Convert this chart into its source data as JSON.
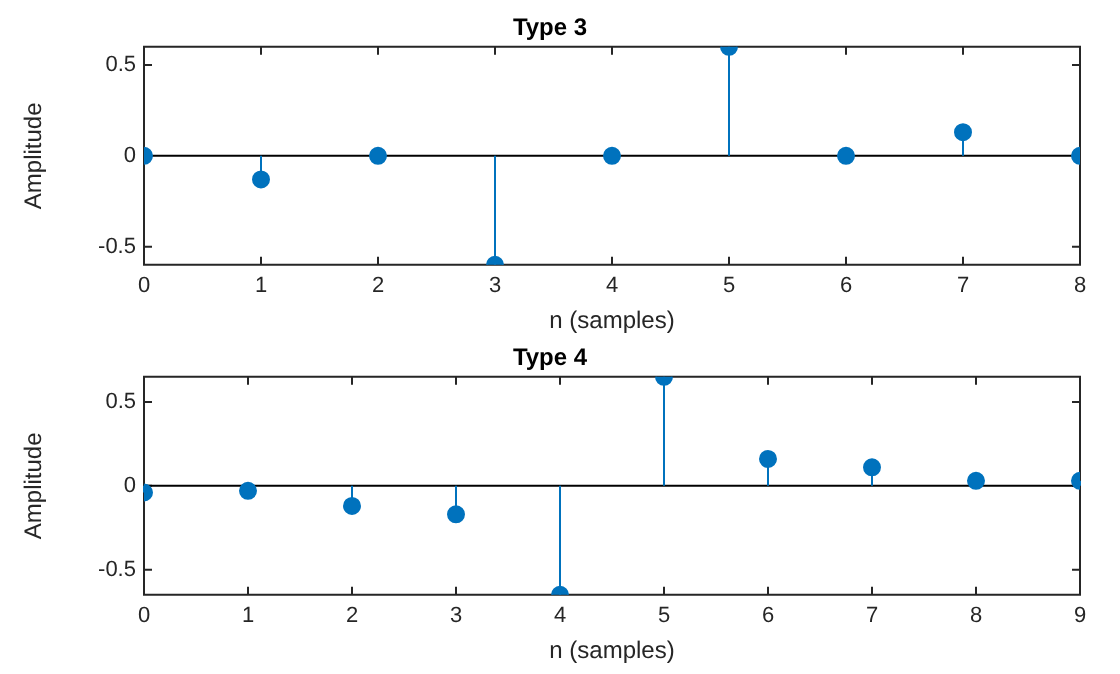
{
  "chart_data": [
    {
      "type": "lollipop",
      "title": "Type 3",
      "xlabel": "n (samples)",
      "ylabel": "Amplitude",
      "x": [
        0,
        1,
        2,
        3,
        4,
        5,
        6,
        7,
        8
      ],
      "series": [
        {
          "color": "#0072bd",
          "values": [
            0,
            -0.13,
            0,
            -0.6,
            0,
            0.6,
            0,
            0.13,
            0
          ]
        }
      ],
      "ref_lines": [
        {
          "axis": "y",
          "value": 0,
          "color": "#000000"
        }
      ],
      "xlim": [
        0,
        8
      ],
      "xticks": [
        0,
        1,
        2,
        3,
        4,
        5,
        6,
        7,
        8
      ],
      "ylim": [
        -0.6,
        0.6
      ],
      "yticks": [
        -0.5,
        0,
        0.5
      ],
      "marker": "circle",
      "grid": false,
      "legend": false
    },
    {
      "type": "lollipop",
      "title": "Type 4",
      "xlabel": "n (samples)",
      "ylabel": "Amplitude",
      "x": [
        0,
        1,
        2,
        3,
        4,
        5,
        6,
        7,
        8,
        9
      ],
      "series": [
        {
          "color": "#0072bd",
          "values": [
            -0.04,
            -0.03,
            -0.12,
            -0.17,
            -0.65,
            0.65,
            0.16,
            0.11,
            0.03,
            0.03
          ]
        }
      ],
      "ref_lines": [
        {
          "axis": "y",
          "value": 0,
          "color": "#000000"
        }
      ],
      "xlim": [
        0,
        9
      ],
      "xticks": [
        0,
        1,
        2,
        3,
        4,
        5,
        6,
        7,
        8,
        9
      ],
      "ylim": [
        -0.65,
        0.65
      ],
      "yticks": [
        -0.5,
        0,
        0.5
      ],
      "marker": "circle",
      "grid": false,
      "legend": false
    }
  ]
}
